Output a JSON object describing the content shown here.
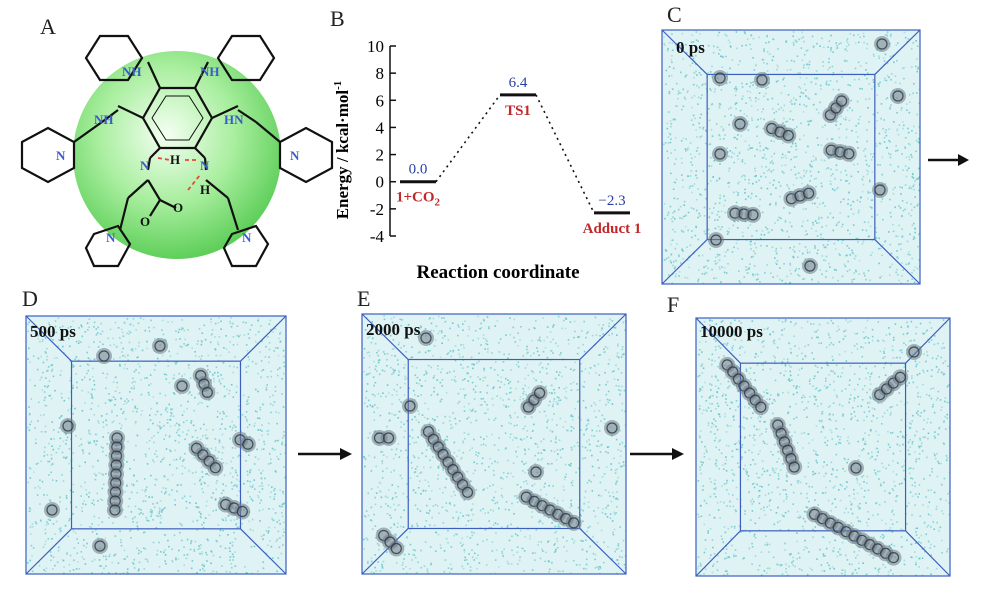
{
  "figure": {
    "panel_labels": [
      "A",
      "B",
      "C",
      "D",
      "E",
      "F"
    ],
    "molecule": {
      "atoms_NH": [
        "NH",
        "NH",
        "NH",
        "HN"
      ],
      "atoms_N": [
        "N",
        "N",
        "N",
        "N",
        "N",
        "N"
      ],
      "core_H": [
        "H",
        "H"
      ],
      "core_O": [
        "O",
        "O"
      ]
    },
    "snapshots": [
      {
        "label": "0 ps"
      },
      {
        "label": "500 ps"
      },
      {
        "label": "2000 ps"
      },
      {
        "label": "10000 ps"
      }
    ],
    "colors": {
      "water": "#6cc6cc",
      "box": "#3b5fc0",
      "sphere": "#7ee07e",
      "nitrogen": "#3a5bd0",
      "red_label": "#c0282a",
      "blue_value": "#2a3fa8"
    }
  },
  "chart_data": {
    "type": "line",
    "title": "",
    "xlabel": "Reaction coordinate",
    "ylabel": "Energy / kcal·mol",
    "ylabel_superscript": "-1",
    "ylim": [
      -4,
      10
    ],
    "yticks": [
      "10",
      "8",
      "6",
      "4",
      "2",
      "0",
      "-2",
      "-4"
    ],
    "ytick_values": [
      10,
      8,
      6,
      4,
      2,
      0,
      -2,
      -4
    ],
    "states": [
      {
        "name": "1+CO",
        "name_sub": "2",
        "energy": 0.0,
        "value_label": "0.0",
        "pos": 0
      },
      {
        "name": "TS1",
        "name_sub": "",
        "energy": 6.4,
        "value_label": "6.4",
        "pos": 1
      },
      {
        "name": "Adduct 1",
        "name_sub": "",
        "energy": -2.3,
        "value_label": "−2.3",
        "pos": 2
      }
    ],
    "grid": false
  }
}
